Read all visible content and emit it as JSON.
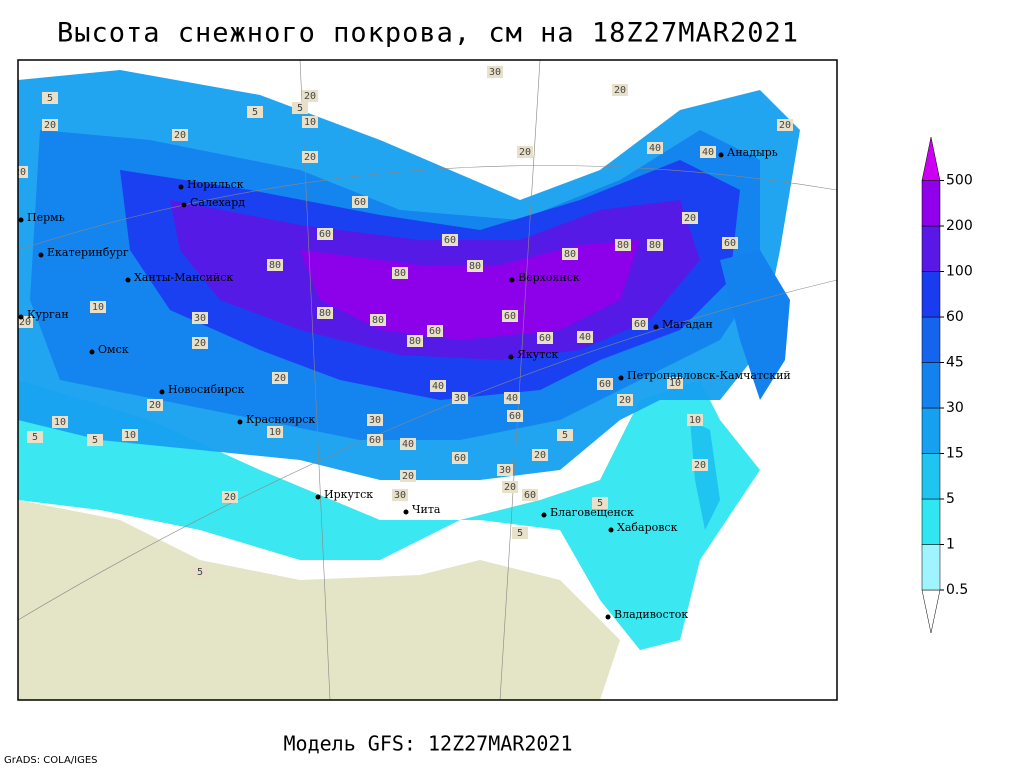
{
  "title": "Высота снежного покрова, см на 18Z27MAR2021",
  "footer": "Модель GFS: 12Z27MAR2021",
  "credit": "GrADS: COLA/IGES",
  "legend": {
    "levels": [
      0.5,
      1,
      5,
      15,
      30,
      45,
      60,
      100,
      200,
      500
    ],
    "colors": [
      "#ffffff",
      "#a0f4ff",
      "#30e6f0",
      "#20c4f0",
      "#16a0f0",
      "#1482ee",
      "#1464ee",
      "#1a3cf0",
      "#5a18e6",
      "#9000ea",
      "#cc00f0"
    ]
  },
  "land_color": "#e4e4c6",
  "cities": [
    "Норильск",
    "Салехард",
    "Пермь",
    "Екатеринбург",
    "Ханты-Мансийск",
    "Курган",
    "Омск",
    "Новосибирск",
    "Красноярск",
    "Иркутск",
    "Чита",
    "Верхоянск",
    "Якутск",
    "Магадан",
    "Анадырь",
    "Петропавловск-Камчатский",
    "Благовещенск",
    "Хабаровск",
    "Владивосток"
  ],
  "contour_labels": [
    20,
    20,
    20,
    20,
    30,
    20,
    40,
    40,
    60,
    60,
    60,
    80,
    80,
    80,
    60,
    20,
    80,
    80,
    80,
    80,
    80,
    60,
    80,
    60,
    60,
    40,
    60,
    60,
    20,
    10,
    10,
    20,
    40,
    30,
    40,
    60,
    60,
    40,
    60,
    30,
    20,
    20,
    20,
    60,
    10,
    10,
    30,
    20,
    20,
    10,
    5,
    5,
    20,
    10,
    30,
    20,
    30,
    5,
    5,
    5,
    5,
    20,
    20,
    5,
    5,
    10,
    5,
    20,
    20
  ]
}
